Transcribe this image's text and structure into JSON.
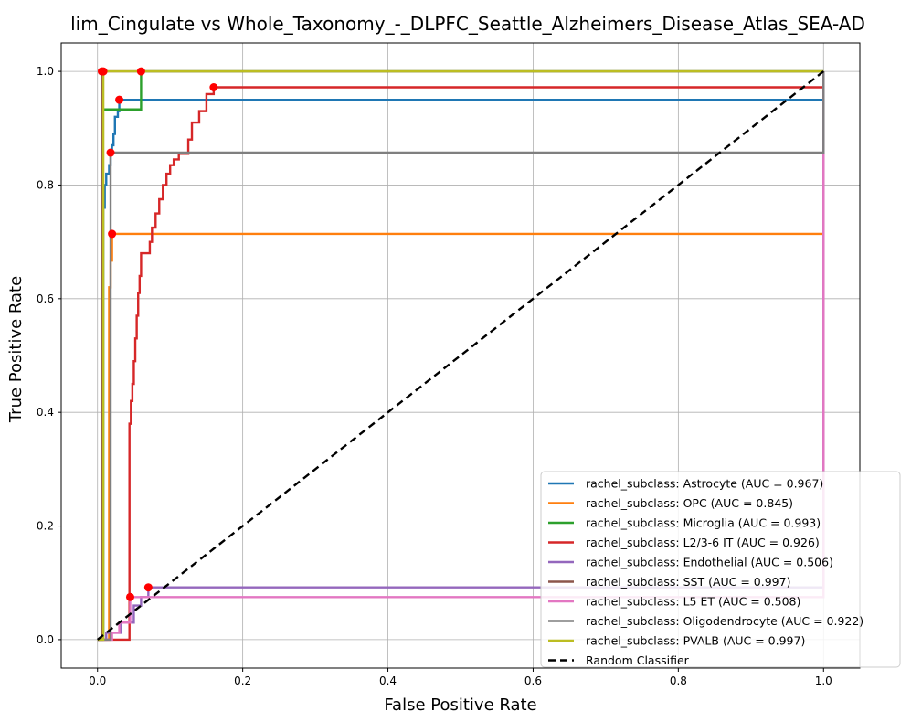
{
  "chart_data": {
    "type": "line",
    "title": "lim_Cingulate vs Whole_Taxonomy_-_DLPFC_Seattle_Alzheimers_Disease_Atlas_SEA-AD",
    "xlabel": "False Positive Rate",
    "ylabel": "True Positive Rate",
    "xlim": [
      -0.05,
      1.05
    ],
    "ylim": [
      -0.05,
      1.05
    ],
    "xticks": [
      "0.0",
      "0.2",
      "0.4",
      "0.6",
      "0.8",
      "1.0"
    ],
    "yticks": [
      "0.0",
      "0.2",
      "0.4",
      "0.6",
      "0.8",
      "1.0"
    ],
    "grid": true,
    "legend_position": "bottom-right",
    "series": [
      {
        "name": "rachel_subclass: Astrocyte (AUC = 0.967)",
        "color": "#1f77b4",
        "points": [
          [
            0,
            0
          ],
          [
            0.008,
            0
          ],
          [
            0.008,
            0.76
          ],
          [
            0.01,
            0.76
          ],
          [
            0.01,
            0.8
          ],
          [
            0.012,
            0.8
          ],
          [
            0.012,
            0.82
          ],
          [
            0.016,
            0.82
          ],
          [
            0.016,
            0.835
          ],
          [
            0.018,
            0.835
          ],
          [
            0.018,
            0.857
          ],
          [
            0.02,
            0.857
          ],
          [
            0.02,
            0.87
          ],
          [
            0.022,
            0.87
          ],
          [
            0.022,
            0.89
          ],
          [
            0.024,
            0.89
          ],
          [
            0.024,
            0.92
          ],
          [
            0.028,
            0.92
          ],
          [
            0.028,
            0.93
          ],
          [
            0.03,
            0.93
          ],
          [
            0.03,
            0.95
          ],
          [
            1,
            0.95
          ],
          [
            1,
            1
          ]
        ],
        "markers": [
          [
            0.03,
            0.95
          ]
        ]
      },
      {
        "name": "rachel_subclass: OPC (AUC = 0.845)",
        "color": "#ff7f0e",
        "points": [
          [
            0,
            0
          ],
          [
            0.016,
            0
          ],
          [
            0.016,
            0.62
          ],
          [
            0.018,
            0.62
          ],
          [
            0.018,
            0.667
          ],
          [
            0.02,
            0.667
          ],
          [
            0.02,
            0.714
          ],
          [
            1,
            0.714
          ],
          [
            1,
            1
          ]
        ],
        "markers": [
          [
            0.02,
            0.714
          ]
        ]
      },
      {
        "name": "rachel_subclass: Microglia (AUC = 0.993)",
        "color": "#2ca02c",
        "points": [
          [
            0,
            0
          ],
          [
            0.006,
            0
          ],
          [
            0.006,
            0.933
          ],
          [
            0.06,
            0.933
          ],
          [
            0.06,
            1
          ],
          [
            1,
            1
          ]
        ],
        "markers": [
          [
            0.06,
            1
          ]
        ]
      },
      {
        "name": "rachel_subclass: L2/3-6 IT (AUC = 0.926)",
        "color": "#d62728",
        "points": [
          [
            0,
            0
          ],
          [
            0.044,
            0
          ],
          [
            0.044,
            0.38
          ],
          [
            0.046,
            0.38
          ],
          [
            0.046,
            0.42
          ],
          [
            0.048,
            0.42
          ],
          [
            0.048,
            0.45
          ],
          [
            0.05,
            0.45
          ],
          [
            0.05,
            0.49
          ],
          [
            0.052,
            0.49
          ],
          [
            0.052,
            0.53
          ],
          [
            0.054,
            0.53
          ],
          [
            0.054,
            0.57
          ],
          [
            0.056,
            0.57
          ],
          [
            0.056,
            0.61
          ],
          [
            0.058,
            0.61
          ],
          [
            0.058,
            0.64
          ],
          [
            0.06,
            0.64
          ],
          [
            0.06,
            0.68
          ],
          [
            0.072,
            0.68
          ],
          [
            0.072,
            0.7
          ],
          [
            0.075,
            0.7
          ],
          [
            0.075,
            0.725
          ],
          [
            0.08,
            0.725
          ],
          [
            0.08,
            0.75
          ],
          [
            0.085,
            0.75
          ],
          [
            0.085,
            0.775
          ],
          [
            0.09,
            0.775
          ],
          [
            0.09,
            0.8
          ],
          [
            0.095,
            0.8
          ],
          [
            0.095,
            0.82
          ],
          [
            0.1,
            0.82
          ],
          [
            0.1,
            0.835
          ],
          [
            0.105,
            0.835
          ],
          [
            0.105,
            0.845
          ],
          [
            0.112,
            0.845
          ],
          [
            0.112,
            0.855
          ],
          [
            0.125,
            0.855
          ],
          [
            0.125,
            0.88
          ],
          [
            0.13,
            0.88
          ],
          [
            0.13,
            0.91
          ],
          [
            0.14,
            0.91
          ],
          [
            0.14,
            0.93
          ],
          [
            0.15,
            0.93
          ],
          [
            0.15,
            0.96
          ],
          [
            0.16,
            0.96
          ],
          [
            0.16,
            0.972
          ],
          [
            1,
            0.972
          ],
          [
            1,
            1
          ]
        ],
        "markers": [
          [
            0.16,
            0.972
          ]
        ]
      },
      {
        "name": "rachel_subclass: Endothelial (AUC = 0.506)",
        "color": "#9467bd",
        "points": [
          [
            0,
            0
          ],
          [
            0.012,
            0
          ],
          [
            0.012,
            0.012
          ],
          [
            0.032,
            0.012
          ],
          [
            0.032,
            0.03
          ],
          [
            0.05,
            0.03
          ],
          [
            0.05,
            0.06
          ],
          [
            0.06,
            0.06
          ],
          [
            0.06,
            0.075
          ],
          [
            0.07,
            0.075
          ],
          [
            0.07,
            0.092
          ],
          [
            1,
            0.092
          ],
          [
            1,
            1
          ]
        ],
        "markers": [
          [
            0.07,
            0.092
          ]
        ]
      },
      {
        "name": "rachel_subclass: SST (AUC = 0.997)",
        "color": "#8c564b",
        "points": [
          [
            0,
            0
          ],
          [
            0.006,
            0
          ],
          [
            0.006,
            1
          ],
          [
            1,
            1
          ]
        ],
        "markers": [
          [
            0.006,
            1
          ]
        ]
      },
      {
        "name": "rachel_subclass: L5 ET (AUC = 0.508)",
        "color": "#e377c2",
        "points": [
          [
            0,
            0
          ],
          [
            0.02,
            0
          ],
          [
            0.02,
            0.012
          ],
          [
            0.03,
            0.012
          ],
          [
            0.03,
            0.03
          ],
          [
            0.045,
            0.03
          ],
          [
            0.045,
            0.075
          ],
          [
            1,
            0.075
          ],
          [
            1,
            1
          ]
        ],
        "markers": [
          [
            0.045,
            0.075
          ]
        ]
      },
      {
        "name": "rachel_subclass: Oligodendrocyte (AUC = 0.922)",
        "color": "#7f7f7f",
        "points": [
          [
            0,
            0
          ],
          [
            0.018,
            0
          ],
          [
            0.018,
            0.857
          ],
          [
            1,
            0.857
          ],
          [
            1,
            1
          ]
        ],
        "markers": [
          [
            0.018,
            0.857
          ]
        ]
      },
      {
        "name": "rachel_subclass: PVALB (AUC = 0.997)",
        "color": "#bcbd22",
        "points": [
          [
            0,
            0
          ],
          [
            0.008,
            0
          ],
          [
            0.008,
            0.933
          ],
          [
            0.008,
            1
          ],
          [
            1,
            1
          ]
        ],
        "markers": [
          [
            0.008,
            1
          ]
        ]
      },
      {
        "name": "Random Classifier",
        "color": "#000000",
        "dashed": true,
        "points": [
          [
            0,
            0
          ],
          [
            1,
            1
          ]
        ],
        "markers": []
      }
    ]
  }
}
